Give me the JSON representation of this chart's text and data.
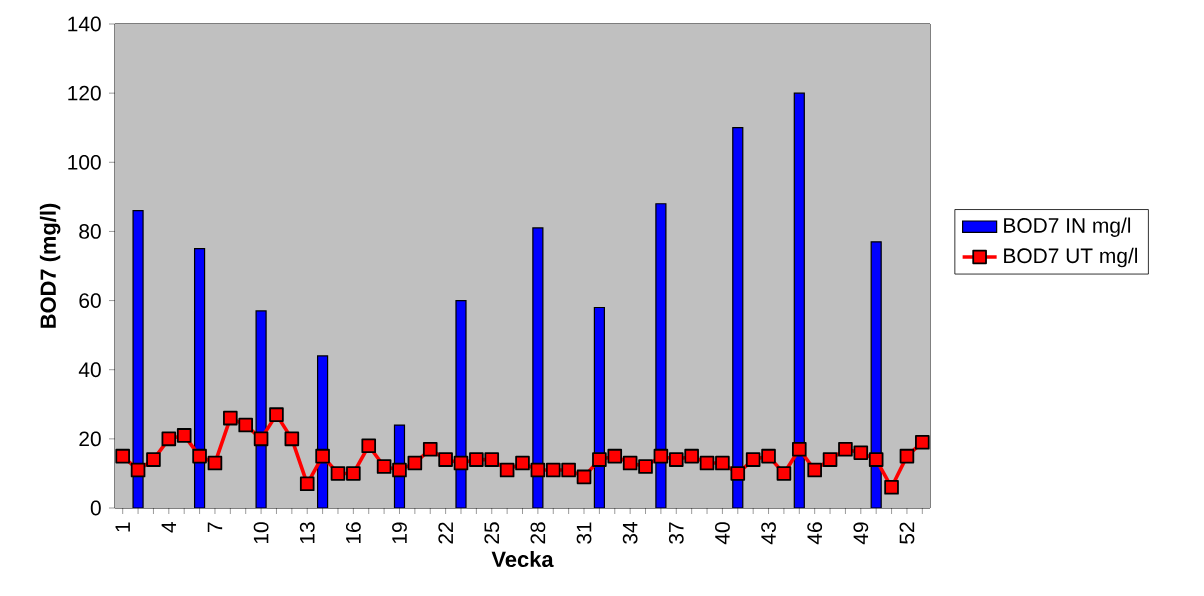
{
  "chart_data": {
    "type": "bar",
    "xlabel": "Vecka",
    "ylabel": "BOD7 (mg/l)",
    "categories": [
      "1",
      null,
      null,
      "4",
      null,
      null,
      "7",
      null,
      null,
      "10",
      null,
      null,
      "13",
      null,
      null,
      "16",
      null,
      null,
      "19",
      null,
      null,
      "22",
      null,
      null,
      "25",
      null,
      null,
      "28",
      null,
      null,
      "31",
      null,
      null,
      "34",
      null,
      null,
      "37",
      null,
      null,
      "40",
      null,
      null,
      "43",
      null,
      null,
      "46",
      null,
      null,
      "49",
      null,
      null,
      "52",
      null
    ],
    "ylim": [
      0,
      140
    ],
    "yticks": [
      0,
      20,
      40,
      60,
      80,
      100,
      120,
      140
    ],
    "legend": "right",
    "marker": "square",
    "line_style": "solid",
    "series": [
      {
        "name": "BOD7 IN mg/l",
        "color": "#0000ff",
        "values": [
          null,
          86,
          null,
          null,
          null,
          75,
          null,
          null,
          null,
          57,
          null,
          null,
          null,
          44,
          null,
          null,
          null,
          null,
          24,
          null,
          null,
          null,
          60,
          null,
          null,
          null,
          null,
          81,
          null,
          null,
          null,
          58,
          null,
          null,
          null,
          88,
          null,
          null,
          null,
          null,
          110,
          null,
          null,
          null,
          120,
          null,
          null,
          null,
          null,
          77,
          null,
          null,
          null
        ]
      },
      {
        "name": "BOD7 UT mg/l",
        "type": "line",
        "color": "#ff0000",
        "values": [
          15,
          11,
          14,
          20,
          21,
          15,
          13,
          26,
          24,
          20,
          27,
          20,
          7,
          15,
          10,
          10,
          18,
          12,
          11,
          13,
          17,
          14,
          13,
          14,
          14,
          11,
          13,
          11,
          11,
          11,
          9,
          14,
          15,
          13,
          12,
          15,
          14,
          15,
          13,
          13,
          10,
          14,
          15,
          10,
          17,
          11,
          14,
          17,
          16,
          14,
          6,
          15,
          19
        ]
      }
    ]
  }
}
